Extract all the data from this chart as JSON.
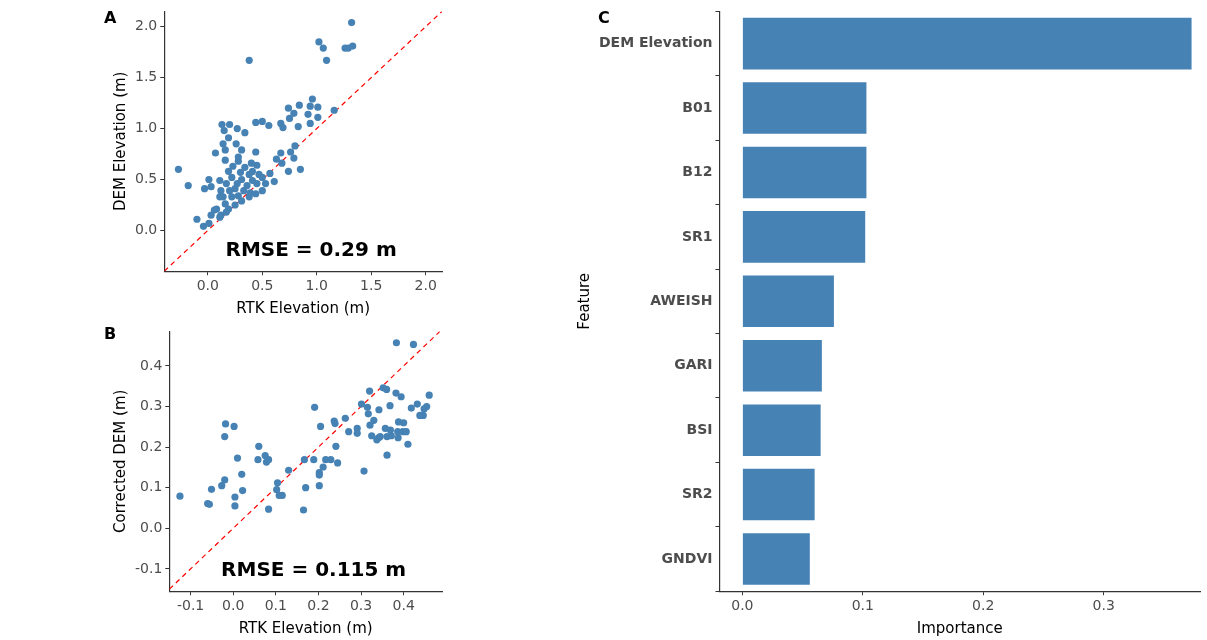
{
  "chart_data": [
    {
      "type": "scatter",
      "title": "A",
      "xlabel": "RTK Elevation (m)",
      "ylabel": "DEM Elevation (m)",
      "annotations": [
        "RMSE = 0.29 m"
      ],
      "xlim": [
        -0.4,
        2.15
      ],
      "ylim": [
        -0.4,
        2.15
      ],
      "xticks": [
        {
          "value": 0,
          "label": "0.0"
        },
        {
          "value": 0.5,
          "label": "0.5"
        },
        {
          "value": 1,
          "label": "1.0"
        },
        {
          "value": 1.5,
          "label": "1.5"
        },
        {
          "value": 2,
          "label": "2.0"
        }
      ],
      "yticks": [
        {
          "value": 0,
          "label": "0.0"
        },
        {
          "value": 0.5,
          "label": "0.5"
        },
        {
          "value": 1,
          "label": "1.0"
        },
        {
          "value": 1.5,
          "label": "1.5"
        },
        {
          "value": 2,
          "label": "2.0"
        }
      ],
      "series": [
        {
          "type": "scatter",
          "color": "#4682b4",
          "marker": "circle",
          "x": [
            1.32,
            1.02,
            1.06,
            1.09,
            1.26,
            1.29,
            1.33,
            0.38,
            0.96,
            0.84,
            0.94,
            1.01,
            1.16,
            0.74,
            0.79,
            0.92,
            1.01,
            0.75,
            0.67,
            0.94,
            0.83,
            0.69,
            0.44,
            0.5,
            0.56,
            0.13,
            0.2,
            0.27,
            0.34,
            0.15,
            0.19,
            0.14,
            0.26,
            0.31,
            0.44,
            0.07,
            0.16,
            0.16,
            0.28,
            0.8,
            0.76,
            0.67,
            0.63,
            0.79,
            0.85,
            0.74,
            0.68,
            -0.27,
            -0.18,
            0.01,
            -0.03,
            0.03,
            0.11,
            0.4,
            0.45,
            0.57,
            0.61,
            -0.1,
            -0.04,
            0.03,
            0.08,
            0.12,
            0.01,
            0.19,
            0.23,
            0.28,
            0.34,
            0.41,
            0.47,
            0.5,
            0.53,
            0.5,
            0.44,
            0.38,
            0.31,
            0.25,
            0.19,
            0.16,
            0.14,
            0.12,
            0.17,
            0.22,
            0.27,
            0.31,
            0.36,
            0.41,
            0.33,
            0.28,
            0.22,
            0.2,
            0.25,
            0.39,
            0.45,
            0.17,
            0.11,
            0.06,
            0.11,
            0.3,
            0.38
          ],
          "values": [
            2.04,
            1.85,
            1.79,
            1.67,
            1.79,
            1.79,
            1.81,
            1.67,
            1.29,
            1.23,
            1.22,
            1.21,
            1.18,
            1.2,
            1.15,
            1.14,
            1.11,
            1.1,
            1.05,
            1.05,
            1.02,
            1.01,
            1.06,
            1.07,
            1.03,
            1.04,
            1.04,
            1,
            0.96,
            0.98,
            0.91,
            0.85,
            0.85,
            0.79,
            0.77,
            0.76,
            0.79,
            0.69,
            0.72,
            0.83,
            0.77,
            0.76,
            0.7,
            0.71,
            0.6,
            0.58,
            0.66,
            0.6,
            0.44,
            0.5,
            0.41,
            0.43,
            0.49,
            0.66,
            0.64,
            0.56,
            0.48,
            0.11,
            0.04,
            0.15,
            0.21,
            0.15,
            0.07,
            0.58,
            0.63,
            0.68,
            0.62,
            0.58,
            0.55,
            0.52,
            0.46,
            0.39,
            0.36,
            0.33,
            0.29,
            0.25,
            0.21,
            0.26,
            0.33,
            0.39,
            0.46,
            0.52,
            0.46,
            0.5,
            0.44,
            0.49,
            0.39,
            0.34,
            0.33,
            0.39,
            0.41,
            0.37,
            0.46,
            0.18,
            0.13,
            0.2,
            0.33,
            0.57,
            0.55
          ]
        },
        {
          "type": "line",
          "color": "#ff0000",
          "marker": "none",
          "line_style": "dashed",
          "x": [
            -0.4,
            2.15
          ],
          "values": [
            -0.4,
            2.15
          ]
        }
      ]
    },
    {
      "type": "scatter",
      "title": "B",
      "xlabel": "RTK Elevation (m)",
      "ylabel": "Corrected DEM (m)",
      "annotations": [
        "RMSE = 0.115 m"
      ],
      "xlim": [
        -0.15,
        0.49
      ],
      "ylim": [
        -0.155,
        0.485
      ],
      "xticks": [
        -0.1,
        {
          "value": 0,
          "label": "0.0"
        },
        0.1,
        0.2,
        0.3,
        0.4
      ],
      "yticks": [
        -0.1,
        {
          "value": 0,
          "label": "0.0"
        },
        0.1,
        0.2,
        0.3,
        0.4
      ],
      "series": [
        {
          "type": "scatter",
          "color": "#4682b4",
          "marker": "circle",
          "x": [
            -0.125,
            -0.06,
            -0.056,
            -0.051,
            -0.027,
            -0.02,
            -0.018,
            0.002,
            -0.02,
            0.004,
            0.004,
            0.01,
            0.02,
            0.022,
            0.06,
            0.058,
            0.075,
            0.078,
            0.083,
            0.083,
            0.104,
            0.102,
            0.108,
            0.115,
            0.13,
            0.165,
            0.167,
            0.17,
            0.189,
            0.191,
            0.202,
            0.202,
            0.202,
            0.205,
            0.211,
            0.217,
            0.229,
            0.237,
            0.239,
            0.241,
            0.245,
            0.263,
            0.271,
            0.291,
            0.291,
            0.301,
            0.307,
            0.315,
            0.317,
            0.32,
            0.321,
            0.33,
            0.325,
            0.337,
            0.341,
            0.345,
            0.342,
            0.352,
            0.36,
            0.357,
            0.361,
            0.361,
            0.368,
            0.369,
            0.371,
            0.382,
            0.383,
            0.386,
            0.387,
            0.388,
            0.394,
            0.398,
            0.4,
            0.406,
            0.41,
            0.418,
            0.423,
            0.432,
            0.438,
            0.446,
            0.448,
            0.454,
            0.46
          ],
          "values": [
            0.079,
            0.061,
            0.059,
            0.096,
            0.105,
            0.119,
            0.257,
            0.251,
            0.226,
            0.077,
            0.055,
            0.173,
            0.133,
            0.093,
            0.202,
            0.169,
            0.179,
            0.163,
            0.169,
            0.047,
            0.112,
            0.095,
            0.081,
            0.081,
            0.143,
            0.045,
            0.169,
            0.1,
            0.169,
            0.298,
            0.137,
            0.131,
            0.105,
            0.251,
            0.151,
            0.169,
            0.169,
            0.264,
            0.258,
            0.202,
            0.161,
            0.271,
            0.238,
            0.246,
            0.234,
            0.306,
            0.141,
            0.298,
            0.282,
            0.338,
            0.254,
            0.266,
            0.228,
            0.218,
            0.223,
            0.226,
            0.292,
            0.346,
            0.342,
            0.246,
            0.226,
            0.18,
            0.302,
            0.242,
            0.228,
            0.333,
            0.457,
            0.238,
            0.223,
            0.262,
            0.324,
            0.238,
            0.26,
            0.238,
            0.207,
            0.296,
            0.453,
            0.306,
            0.278,
            0.278,
            0.294,
            0.3,
            0.328
          ]
        },
        {
          "type": "line",
          "color": "#ff0000",
          "marker": "none",
          "line_style": "dashed",
          "x": [
            -0.15,
            0.485
          ],
          "values": [
            -0.15,
            0.485
          ]
        }
      ]
    },
    {
      "type": "bar",
      "title": "C",
      "orientation": "horizontal",
      "xlabel": "Importance",
      "ylabel": "Feature",
      "categories": [
        "DEM Elevation",
        "B01",
        "B12",
        "SR1",
        "AWEISH",
        "GARI",
        "BSI",
        "SR2",
        "GNDVI"
      ],
      "values": [
        0.373,
        0.103,
        0.103,
        0.102,
        0.076,
        0.066,
        0.065,
        0.06,
        0.056
      ],
      "color": "#4682b4",
      "xlim": [
        -0.019,
        0.38
      ],
      "xticks": [
        {
          "value": 0,
          "label": "0.0"
        },
        0.1,
        0.2,
        0.3
      ]
    }
  ]
}
